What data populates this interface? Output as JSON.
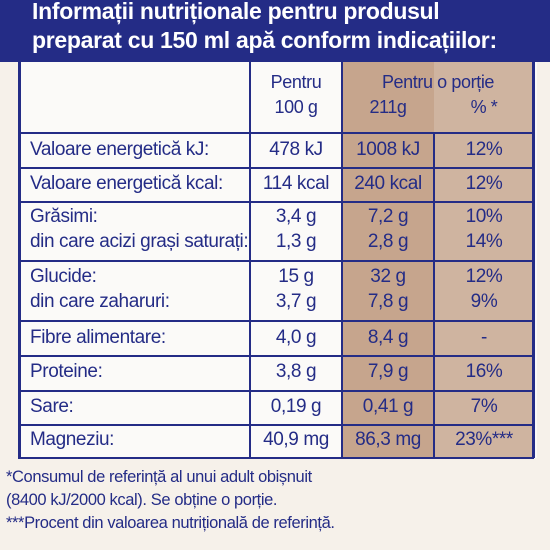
{
  "title": {
    "line1": "Informații nutriționale pentru produsul",
    "line2": "preparat cu 150 ml apă conform indicațiilor:"
  },
  "columns": {
    "per100_top": "Pentru",
    "per100_bottom": "100 g",
    "portion_top": "Pentru o porție",
    "portion_grams": "211g",
    "portion_percent": "% *"
  },
  "rows": [
    {
      "label": "Valoare energetică kJ:",
      "per100": "478 kJ",
      "portion": "1008 kJ",
      "percent": "12%"
    },
    {
      "label": "Valoare energetică kcal:",
      "per100": "114 kcal",
      "portion": "240 kcal",
      "percent": "12%"
    },
    {
      "label": "Grăsimi:",
      "per100": "3,4 g",
      "portion": "7,2 g",
      "percent": "10%"
    },
    {
      "label": "din care acizi grași saturați:",
      "per100": "1,3 g",
      "portion": "2,8 g",
      "percent": "14%"
    },
    {
      "label": "Glucide:",
      "per100": "15 g",
      "portion": "32 g",
      "percent": "12%"
    },
    {
      "label": "din care zaharuri:",
      "per100": "3,7 g",
      "portion": "7,8 g",
      "percent": "9%"
    },
    {
      "label": "Fibre alimentare:",
      "per100": "4,0 g",
      "portion": "8,4 g",
      "percent": "-"
    },
    {
      "label": "Proteine:",
      "per100": "3,8 g",
      "portion": "7,9 g",
      "percent": "16%"
    },
    {
      "label": "Sare:",
      "per100": "0,19 g",
      "portion": "0,41 g",
      "percent": "7%"
    },
    {
      "label": "Magneziu:",
      "per100": "40,9 mg",
      "portion": "86,3 mg",
      "percent": "23%***"
    }
  ],
  "footnotes": {
    "line1": "*Consumul de referință al unui adult obișnuit",
    "line2": "(8400 kJ/2000 kcal). Se obține o porție.",
    "line3": "***Procent din valoarea nutrițională de referință."
  },
  "colors": {
    "brand_blue": "#242c86",
    "shade_portion": "#c6a58d",
    "shade_percent": "#cfb4a0"
  }
}
